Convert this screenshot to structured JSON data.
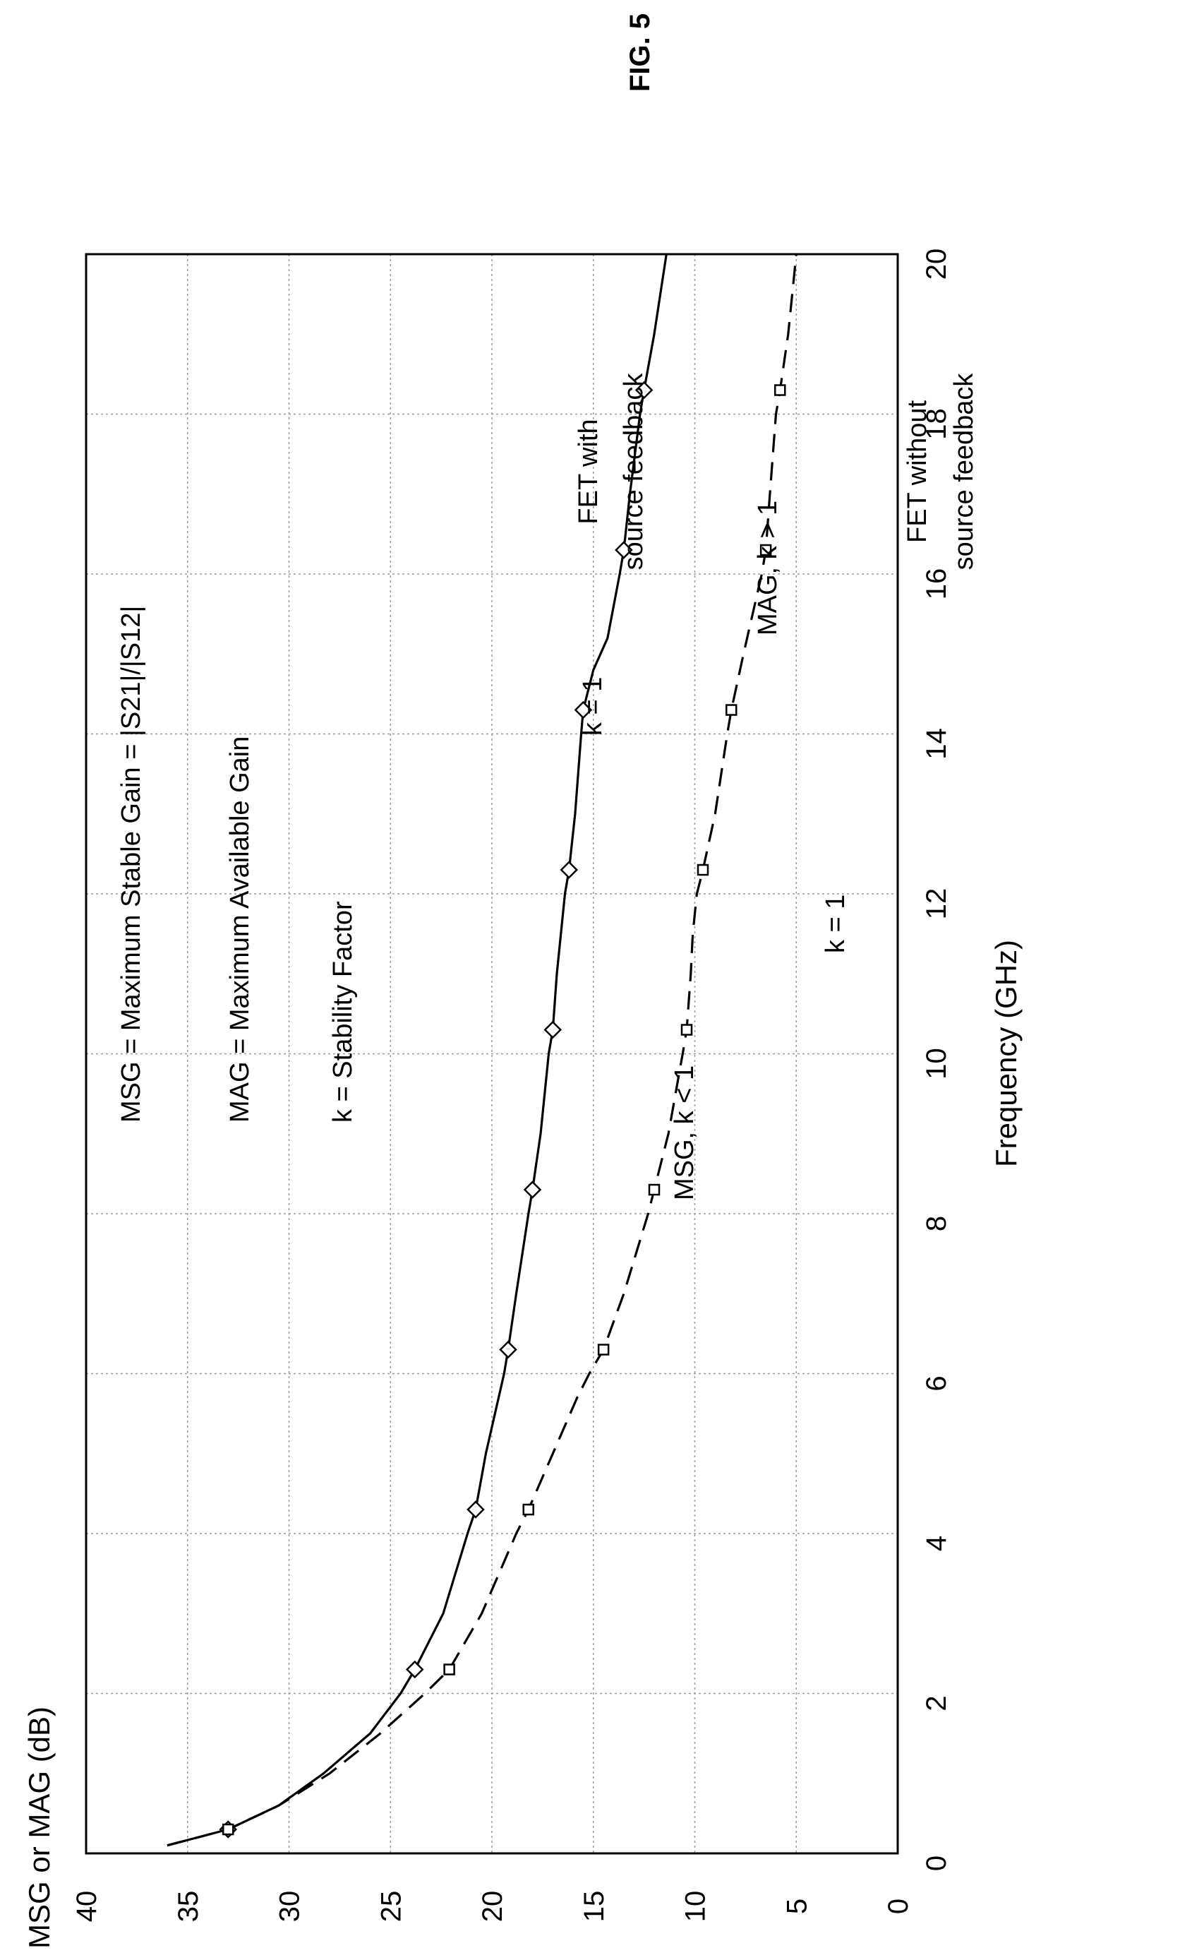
{
  "figure_label": "FIG. 5",
  "chart_data": {
    "type": "line",
    "xlabel": "Frequency (GHz)",
    "ylabel": "MSG or MAG (dB)",
    "xlim": [
      0,
      20
    ],
    "ylim": [
      0,
      40
    ],
    "x_ticks": [
      0,
      2,
      4,
      6,
      8,
      10,
      12,
      14,
      16,
      18,
      20
    ],
    "y_ticks": [
      0,
      5,
      10,
      15,
      20,
      25,
      30,
      35,
      40
    ],
    "grid": true,
    "orientation": "rotated 90 degrees counter-clockwise",
    "series": [
      {
        "name": "FET with source feedback",
        "line_style": "solid",
        "marker": "diamond",
        "x": [
          0.1,
          0.3,
          0.6,
          1.0,
          1.5,
          2.0,
          2.3,
          3.0,
          4.0,
          4.3,
          5.0,
          6.0,
          6.3,
          7.0,
          8.0,
          8.3,
          9.0,
          10.0,
          10.3,
          11.0,
          12.0,
          12.3,
          13.0,
          14.0,
          14.3,
          14.8,
          15.2,
          16.0,
          16.3,
          17.0,
          18.0,
          18.3,
          19.0,
          20.0
        ],
        "y": [
          36.0,
          33.0,
          30.5,
          28.3,
          26.0,
          24.5,
          23.8,
          22.4,
          21.2,
          20.8,
          20.3,
          19.4,
          19.2,
          18.8,
          18.2,
          18.0,
          17.6,
          17.2,
          17.0,
          16.8,
          16.4,
          16.2,
          15.9,
          15.6,
          15.5,
          15.0,
          14.3,
          13.7,
          13.5,
          13.2,
          12.7,
          12.5,
          12.0,
          11.4
        ],
        "marker_x": [
          0.3,
          2.3,
          4.3,
          6.3,
          8.3,
          10.3,
          12.3,
          14.3,
          16.3,
          18.3
        ]
      },
      {
        "name": "FET without source feedback",
        "line_style": "dashed",
        "marker": "square",
        "x": [
          0.1,
          0.3,
          0.6,
          1.0,
          1.5,
          2.0,
          2.3,
          3.0,
          4.0,
          4.3,
          5.0,
          5.7,
          6.0,
          6.3,
          7.0,
          8.0,
          8.3,
          9.0,
          10.0,
          10.3,
          11.0,
          11.5,
          12.0,
          12.3,
          13.0,
          14.0,
          14.3,
          15.0,
          16.0,
          16.3,
          17.0,
          18.0,
          18.3,
          19.0,
          20.0
        ],
        "y": [
          36.0,
          33.0,
          30.5,
          28.0,
          25.5,
          23.3,
          22.1,
          20.5,
          18.8,
          18.2,
          17.0,
          15.8,
          15.2,
          14.5,
          13.5,
          12.3,
          12.0,
          11.3,
          10.6,
          10.4,
          10.2,
          10.1,
          9.9,
          9.6,
          9.0,
          8.4,
          8.2,
          7.6,
          6.7,
          6.5,
          6.3,
          6.0,
          5.8,
          5.4,
          5.0
        ],
        "marker_x": [
          0.3,
          2.3,
          4.3,
          6.3,
          8.3,
          10.3,
          12.3,
          14.3,
          16.3,
          18.3
        ]
      }
    ],
    "annotations": {
      "legend_msg": "MSG = Maximum Stable Gain = |S21|/|S12|",
      "legend_mag": "MAG = Maximum Available Gain",
      "legend_k": "k = Stability Factor",
      "solid_k": "k = 1",
      "solid_label_line1": "FET with",
      "solid_label_line2": "source feedback",
      "dashed_msg": "MSG, k < 1",
      "dashed_mag": "MAG, k > 1",
      "dashed_k": "k = 1",
      "dashed_label_line1": "FET without",
      "dashed_label_line2": "source feedback"
    }
  }
}
